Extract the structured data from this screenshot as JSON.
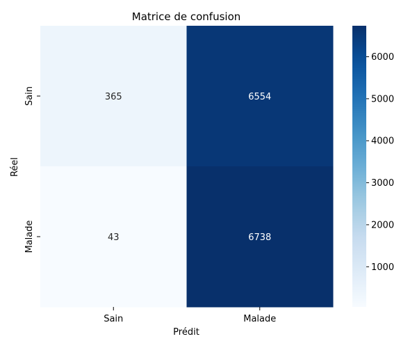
{
  "chart_data": {
    "type": "heatmap",
    "title": "Matrice de confusion",
    "xlabel": "Prédit",
    "ylabel": "Réel",
    "x_categories": [
      "Sain",
      "Malade"
    ],
    "y_categories": [
      "Sain",
      "Malade"
    ],
    "values": [
      [
        365,
        6554
      ],
      [
        43,
        6738
      ]
    ],
    "colormap": "Blues",
    "color_range": [
      43,
      6738
    ],
    "colorbar_ticks": [
      1000,
      2000,
      3000,
      4000,
      5000,
      6000
    ],
    "colorbar_tick_labels": [
      "1000",
      "2000",
      "3000",
      "4000",
      "5000",
      "6000"
    ],
    "grid": false
  }
}
